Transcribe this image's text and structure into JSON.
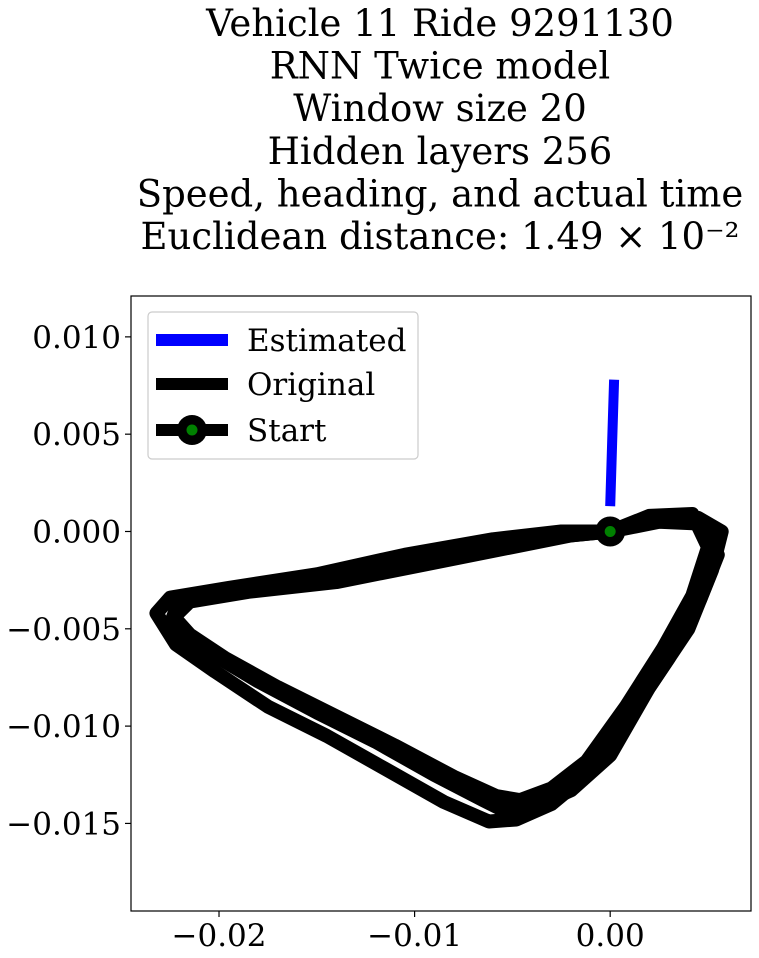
{
  "chart_data": {
    "type": "line",
    "title_lines": [
      "Vehicle 11 Ride 9291130",
      "RNN Twice model",
      "Window size 20",
      "Hidden layers 256",
      "Speed, heading, and actual time",
      "Euclidean distance: 1.49 × 10⁻²"
    ],
    "xlim": [
      -0.0245,
      0.0072
    ],
    "ylim": [
      -0.0195,
      0.0121
    ],
    "xticks": [
      -0.02,
      -0.01,
      0.0
    ],
    "xtick_labels": [
      "−0.02",
      "−0.01",
      "0.00"
    ],
    "yticks": [
      0.01,
      0.005,
      0.0,
      -0.005,
      -0.01,
      -0.015
    ],
    "ytick_labels": [
      "0.010",
      "0.005",
      "0.000",
      "−0.005",
      "−0.010",
      "−0.015"
    ],
    "legend_position": "upper-left",
    "series": [
      {
        "name": "Estimated",
        "color": "#0000ff",
        "x": [
          0.0,
          0.0001,
          0.0002
        ],
        "y": [
          0.0013,
          0.0045,
          0.0078
        ]
      },
      {
        "name": "Original",
        "color": "#000000",
        "loops": [
          {
            "x": [
              0.0,
              0.002,
              0.0045,
              0.0057,
              0.0052,
              0.004,
              0.002,
              0.0,
              -0.002,
              -0.004,
              -0.0055,
              -0.0065,
              -0.009,
              -0.012,
              -0.015,
              -0.018,
              -0.0205,
              -0.0225,
              -0.0222,
              -0.021,
              -0.018,
              -0.014,
              -0.01,
              -0.006,
              -0.003,
              0.0
            ],
            "y": [
              0.0,
              0.0007,
              0.0007,
              0.0,
              -0.002,
              -0.005,
              -0.008,
              -0.0115,
              -0.0133,
              -0.0142,
              -0.0143,
              -0.0138,
              -0.0125,
              -0.0108,
              -0.0093,
              -0.0077,
              -0.0062,
              -0.0048,
              -0.004,
              -0.0033,
              -0.003,
              -0.0024,
              -0.0015,
              -0.0008,
              -0.0003,
              0.0
            ]
          },
          {
            "x": [
              0.0,
              0.0025,
              0.0048,
              0.0055,
              0.0046,
              0.003,
              0.001,
              -0.0012,
              -0.003,
              -0.0048,
              -0.0062,
              -0.0085,
              -0.0115,
              -0.0145,
              -0.0175,
              -0.0202,
              -0.0222,
              -0.0232,
              -0.0225,
              -0.0195,
              -0.015,
              -0.0105,
              -0.006,
              -0.0025,
              0.0
            ],
            "y": [
              0.0,
              0.0005,
              0.0004,
              -0.0012,
              -0.0035,
              -0.0065,
              -0.0095,
              -0.0125,
              -0.014,
              -0.0148,
              -0.0149,
              -0.0139,
              -0.0122,
              -0.0105,
              -0.009,
              -0.0072,
              -0.0058,
              -0.0042,
              -0.0034,
              -0.0029,
              -0.0022,
              -0.0012,
              -0.0004,
              0.0,
              0.0
            ]
          },
          {
            "x": [
              0.0,
              0.002,
              0.0042,
              0.005,
              0.0042,
              0.0027,
              0.0008,
              -0.0012,
              -0.003,
              -0.0046,
              -0.0058,
              -0.008,
              -0.011,
              -0.014,
              -0.017,
              -0.0197,
              -0.0215,
              -0.0223,
              -0.0215,
              -0.0185,
              -0.014,
              -0.0095,
              -0.005,
              -0.002,
              0.0
            ],
            "y": [
              0.0,
              0.0008,
              0.0009,
              -0.0008,
              -0.0033,
              -0.006,
              -0.009,
              -0.0118,
              -0.0132,
              -0.0138,
              -0.0136,
              -0.0126,
              -0.011,
              -0.0095,
              -0.008,
              -0.0065,
              -0.0053,
              -0.0044,
              -0.0036,
              -0.0031,
              -0.0026,
              -0.0017,
              -0.0008,
              -0.0002,
              0.0
            ]
          }
        ]
      },
      {
        "name": "Start",
        "color": "#008000",
        "x": [
          0.0
        ],
        "y": [
          0.0
        ]
      }
    ]
  }
}
